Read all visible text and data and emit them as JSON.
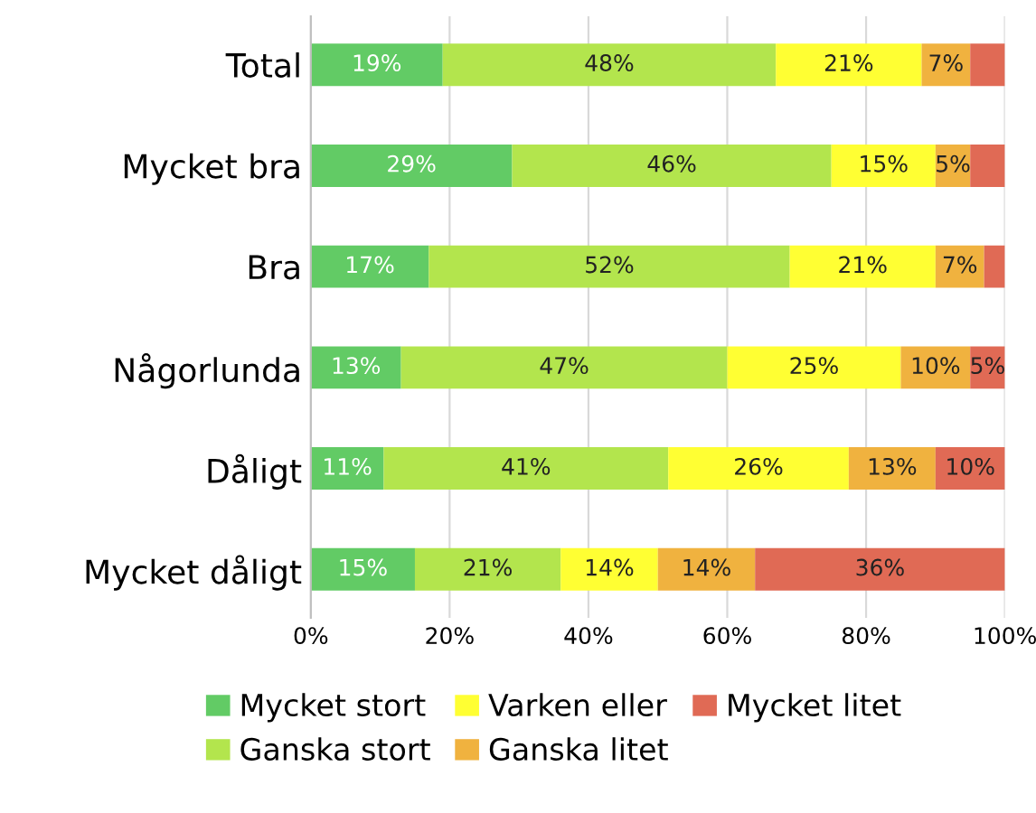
{
  "chart_data": {
    "type": "bar",
    "orientation": "horizontal",
    "stacked": true,
    "categories": [
      "Total",
      "Mycket bra",
      "Bra",
      "Någorlunda",
      "Dåligt",
      "Mycket dåligt"
    ],
    "series": [
      {
        "name": "Mycket stort",
        "color": "#62cb65",
        "values": [
          19,
          29,
          17,
          13,
          10.5,
          15
        ],
        "value_labels": [
          "19%",
          "29%",
          "17%",
          "13%",
          "11%",
          "15%"
        ]
      },
      {
        "name": "Ganska stort",
        "color": "#b3e54d",
        "values": [
          48,
          46,
          52,
          47,
          41,
          21
        ],
        "value_labels": [
          "48%",
          "46%",
          "52%",
          "47%",
          "41%",
          "21%"
        ]
      },
      {
        "name": "Varken eller",
        "color": "#ffff33",
        "values": [
          21,
          15,
          21,
          25,
          26,
          14
        ],
        "value_labels": [
          "21%",
          "15%",
          "21%",
          "25%",
          "26%",
          "14%"
        ]
      },
      {
        "name": "Ganska litet",
        "color": "#f0b23f",
        "values": [
          7,
          5,
          7,
          10,
          12.5,
          14
        ],
        "value_labels": [
          "7%",
          "5%",
          "7%",
          "10%",
          "13%",
          "14%"
        ]
      },
      {
        "name": "Mycket litet",
        "color": "#e06a55",
        "values": [
          5,
          5,
          3,
          5,
          10,
          36
        ],
        "value_labels": [
          null,
          null,
          null,
          "5%",
          "10%",
          "36%"
        ]
      }
    ],
    "xlim": [
      0,
      100
    ],
    "xticks": [
      {
        "value": 0,
        "label": "0%"
      },
      {
        "value": 20,
        "label": "20%"
      },
      {
        "value": 40,
        "label": "40%"
      },
      {
        "value": 60,
        "label": "60%"
      },
      {
        "value": 80,
        "label": "80%"
      },
      {
        "value": 100,
        "label": "100%"
      }
    ],
    "grid": "x",
    "legend": "bottom"
  }
}
